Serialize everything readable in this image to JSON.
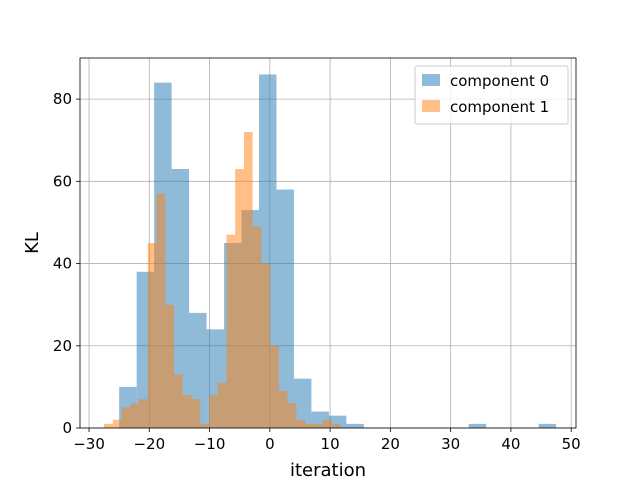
{
  "chart_data": {
    "type": "bar",
    "title": "",
    "xlabel": "iteration",
    "ylabel": "KL",
    "xlim": [
      -31.5,
      50.8
    ],
    "ylim": [
      0,
      90
    ],
    "xticks": [
      -30,
      -20,
      -10,
      0,
      10,
      20,
      30,
      40,
      50
    ],
    "yticks": [
      0,
      20,
      40,
      60,
      80
    ],
    "grid": true,
    "legend_position": "top-right",
    "series": [
      {
        "name": "component 0",
        "color": "#1f77b4",
        "opacity": 0.5,
        "bin_edges": [
          -25.0,
          -22.1,
          -19.2,
          -16.3,
          -13.4,
          -10.5,
          -7.6,
          -4.7,
          -1.8,
          1.1,
          4.0,
          6.9,
          9.8,
          12.7,
          15.6,
          18.5,
          21.4,
          24.3,
          27.2,
          30.1,
          33.0,
          35.9,
          38.8,
          41.7,
          44.6,
          47.5
        ],
        "counts": [
          10,
          38,
          84,
          63,
          28,
          24,
          45,
          53,
          86,
          58,
          12,
          4,
          3,
          1,
          0,
          0,
          0,
          0,
          0,
          0,
          1,
          0,
          0,
          0,
          1
        ]
      },
      {
        "name": "component 1",
        "color": "#ff7f0e",
        "opacity": 0.5,
        "bin_edges": [
          -27.5,
          -26.05,
          -24.6,
          -23.15,
          -21.7,
          -20.25,
          -18.8,
          -17.35,
          -15.9,
          -14.45,
          -13.0,
          -11.55,
          -10.1,
          -8.65,
          -7.2,
          -5.75,
          -4.3,
          -2.85,
          -1.4,
          0.05,
          1.5,
          2.95,
          4.4,
          5.85,
          7.3,
          8.75,
          10.2,
          11.65
        ],
        "counts": [
          1,
          2,
          5,
          6,
          7,
          45,
          57,
          30,
          13,
          8,
          7,
          1,
          8,
          11,
          47,
          63,
          72,
          49,
          40,
          20,
          9,
          6,
          2,
          1,
          1,
          2,
          1
        ]
      }
    ]
  }
}
